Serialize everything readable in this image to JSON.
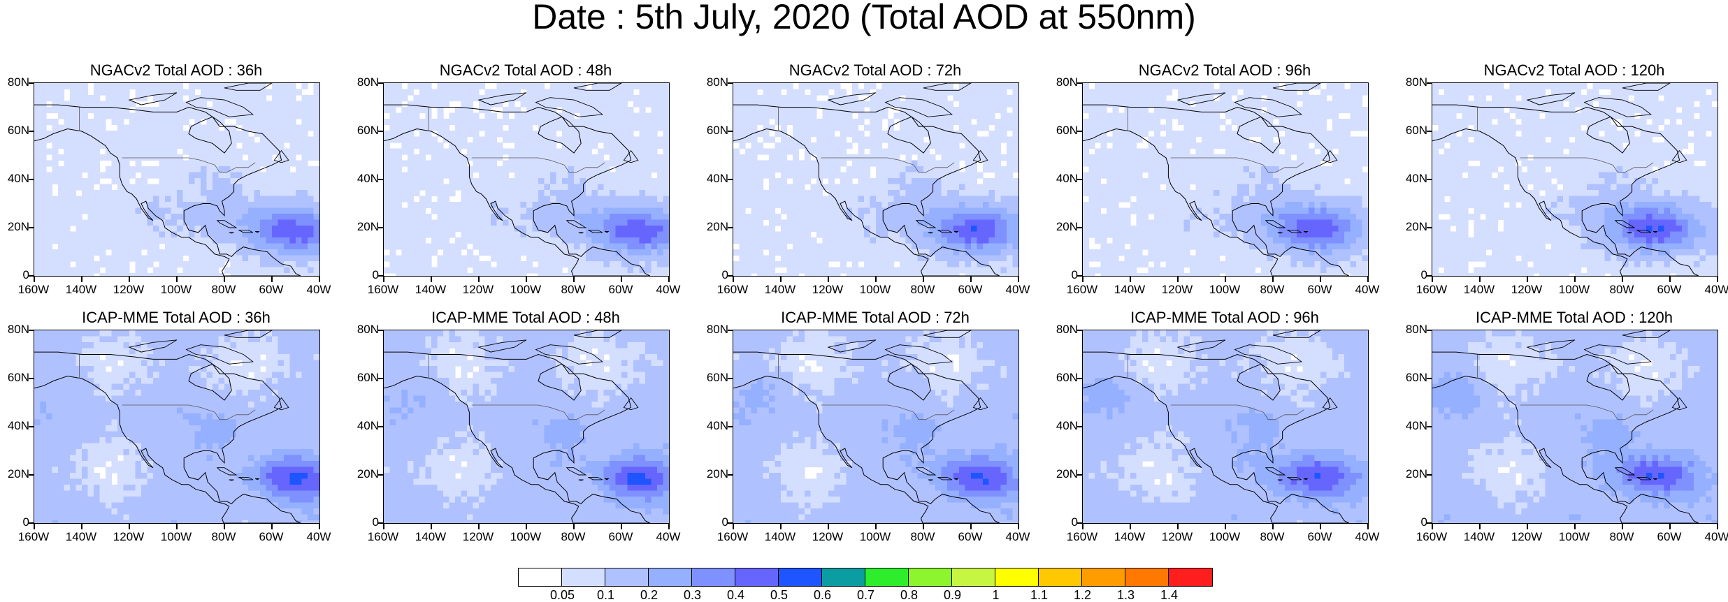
{
  "title": "Date : 5th July, 2020 (Total AOD at 550nm)",
  "y_ticks": [
    "80N",
    "60N",
    "40N",
    "20N",
    "0"
  ],
  "x_ticks": [
    "160W",
    "140W",
    "120W",
    "100W",
    "80W",
    "60W",
    "40W"
  ],
  "panels": [
    {
      "model": "NGACv2",
      "title": "NGACv2 Total AOD : 36h",
      "lead": "36h"
    },
    {
      "model": "NGACv2",
      "title": "NGACv2 Total AOD : 48h",
      "lead": "48h"
    },
    {
      "model": "NGACv2",
      "title": "NGACv2 Total AOD : 72h",
      "lead": "72h"
    },
    {
      "model": "NGACv2",
      "title": "NGACv2 Total AOD : 96h",
      "lead": "96h"
    },
    {
      "model": "NGACv2",
      "title": "NGACv2 Total AOD : 120h",
      "lead": "120h"
    },
    {
      "model": "ICAP-MME",
      "title": "ICAP-MME Total AOD : 36h",
      "lead": "36h"
    },
    {
      "model": "ICAP-MME",
      "title": "ICAP-MME Total AOD : 48h",
      "lead": "48h"
    },
    {
      "model": "ICAP-MME",
      "title": "ICAP-MME Total AOD : 72h",
      "lead": "72h"
    },
    {
      "model": "ICAP-MME",
      "title": "ICAP-MME Total AOD : 96h",
      "lead": "96h"
    },
    {
      "model": "ICAP-MME",
      "title": "ICAP-MME Total AOD : 120h",
      "lead": "120h"
    }
  ],
  "colorbar": {
    "labels": [
      "0.05",
      "0.1",
      "0.2",
      "0.3",
      "0.4",
      "0.5",
      "0.6",
      "0.7",
      "0.8",
      "0.9",
      "1",
      "1.1",
      "1.2",
      "1.3",
      "1.4"
    ],
    "colors": [
      "#ffffff",
      "#d4deff",
      "#b0c1ff",
      "#94b0ff",
      "#7f90ff",
      "#6666ff",
      "#1f55ff",
      "#0b9da1",
      "#2ded2d",
      "#8df52d",
      "#c6f542",
      "#ffff00",
      "#ffc800",
      "#ff9d00",
      "#ff7800",
      "#ff1e1e"
    ]
  }
}
